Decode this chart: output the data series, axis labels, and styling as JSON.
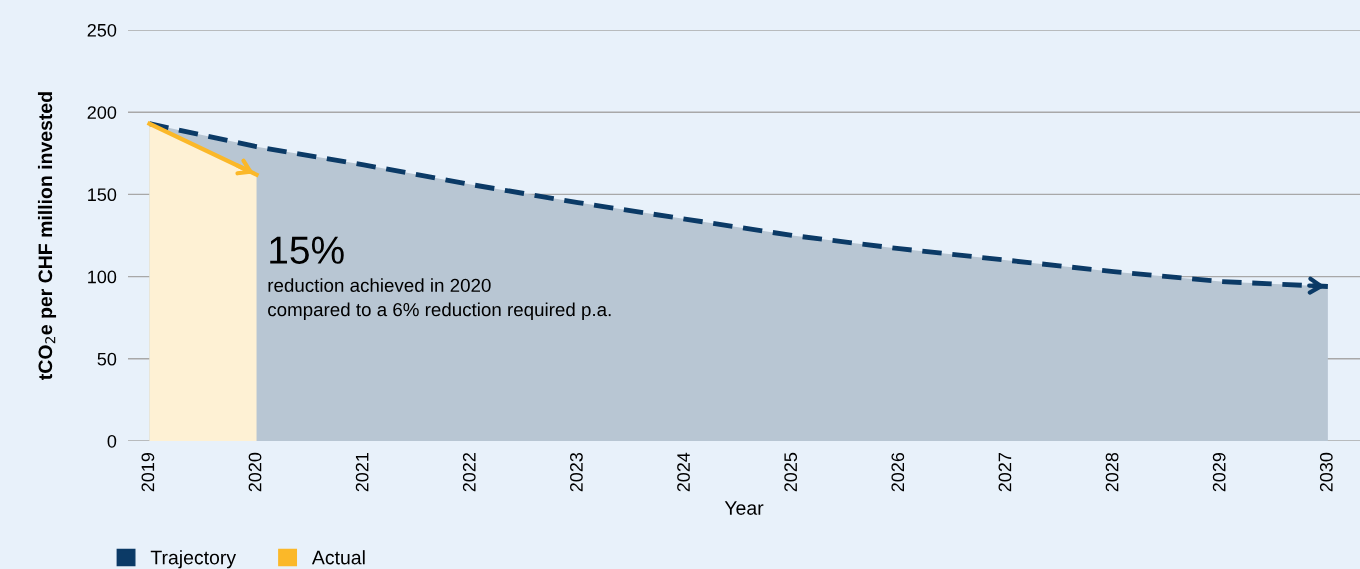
{
  "chart_data": {
    "type": "area",
    "xlabel": "Year",
    "ylabel": "tCO$_{2}$e per CHF million invested",
    "x": [
      2019,
      2020,
      2021,
      2022,
      2023,
      2024,
      2025,
      2026,
      2027,
      2028,
      2029,
      2030
    ],
    "series": [
      {
        "name": "Trajectory",
        "color": "#0b3a66",
        "line_style": "dashed",
        "values": [
          193,
          179,
          168,
          156,
          145,
          135,
          125,
          117,
          110,
          103,
          97,
          94
        ]
      },
      {
        "name": "Actual",
        "color": "#fbb829",
        "line_style": "solid",
        "x": [
          2019,
          2020
        ],
        "values": [
          193,
          162
        ]
      }
    ],
    "annotations": [
      "15%",
      "reduction achieved in 2020\ncompared to a 6% reduction required p.a."
    ],
    "xlim": [
      2018.8,
      2030.3
    ],
    "ylim": [
      0,
      250
    ],
    "yticks": [
      0,
      50,
      100,
      150,
      200,
      250
    ],
    "xticks": [
      2019,
      2020,
      2021,
      2022,
      2023,
      2024,
      2025,
      2026,
      2027,
      2028,
      2029,
      2030
    ],
    "grid": "y",
    "legend": "bottom left"
  }
}
